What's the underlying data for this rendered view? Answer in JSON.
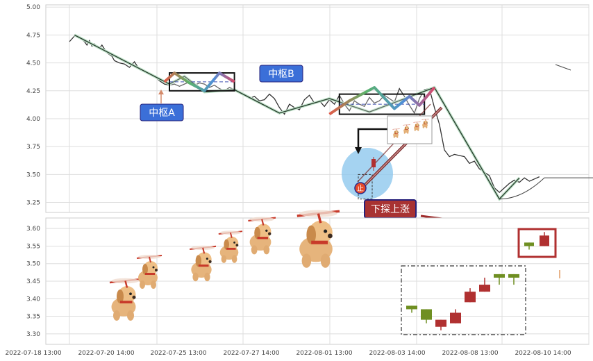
{
  "chart_data": [
    {
      "type": "line",
      "panel": "top",
      "y_ticks": [
        "5.00",
        "4.75",
        "4.50",
        "4.25",
        "4.00",
        "3.75",
        "3.50",
        "3.25"
      ],
      "ylim": [
        3.16,
        5.02
      ],
      "grid": true,
      "price_series": [
        [
          0,
          4.69
        ],
        [
          2,
          4.74
        ],
        [
          4,
          4.73
        ],
        [
          6,
          4.69
        ],
        [
          7,
          4.66
        ],
        [
          8,
          4.7
        ],
        [
          9,
          4.65
        ],
        [
          10,
          4.67
        ],
        [
          12,
          4.63
        ],
        [
          13,
          4.66
        ],
        [
          15,
          4.59
        ],
        [
          17,
          4.56
        ],
        [
          18,
          4.52
        ],
        [
          20,
          4.5
        ],
        [
          22,
          4.49
        ],
        [
          24,
          4.46
        ],
        [
          26,
          4.51
        ],
        [
          28,
          4.44
        ],
        [
          30,
          4.42
        ],
        [
          32,
          4.4
        ],
        [
          34,
          4.38
        ],
        [
          36,
          4.34
        ],
        [
          38,
          4.31
        ],
        [
          40,
          4.3
        ],
        [
          42,
          4.31
        ],
        [
          44,
          4.29
        ],
        [
          46,
          4.31
        ],
        [
          48,
          4.33
        ],
        [
          50,
          4.3
        ],
        [
          52,
          4.32
        ],
        [
          54,
          4.31
        ],
        [
          56,
          4.28
        ],
        [
          58,
          4.3
        ],
        [
          60,
          4.27
        ],
        [
          62,
          4.25
        ],
        [
          64,
          4.28
        ],
        [
          66,
          4.26
        ],
        [
          68,
          4.24
        ],
        [
          70,
          4.21
        ],
        [
          72,
          4.18
        ],
        [
          74,
          4.2
        ],
        [
          76,
          4.16
        ],
        [
          78,
          4.17
        ],
        [
          80,
          4.22
        ],
        [
          82,
          4.18
        ],
        [
          84,
          4.1
        ],
        [
          86,
          4.04
        ],
        [
          88,
          4.13
        ],
        [
          90,
          4.1
        ],
        [
          92,
          4.08
        ],
        [
          94,
          4.17
        ],
        [
          96,
          4.21
        ],
        [
          98,
          4.14
        ],
        [
          100,
          4.16
        ],
        [
          102,
          4.11
        ],
        [
          104,
          4.17
        ],
        [
          106,
          4.13
        ],
        [
          108,
          4.21
        ],
        [
          110,
          4.13
        ],
        [
          112,
          4.07
        ],
        [
          114,
          4.16
        ],
        [
          116,
          4.13
        ],
        [
          118,
          4.11
        ],
        [
          120,
          4.19
        ],
        [
          122,
          4.14
        ],
        [
          124,
          4.16
        ],
        [
          126,
          4.21
        ],
        [
          128,
          4.18
        ],
        [
          130,
          4.15
        ],
        [
          132,
          4.27
        ],
        [
          134,
          4.2
        ],
        [
          136,
          4.12
        ],
        [
          138,
          4.05
        ],
        [
          140,
          4.18
        ],
        [
          142,
          4.26
        ],
        [
          144,
          4.27
        ],
        [
          146,
          4.1
        ],
        [
          148,
          3.95
        ],
        [
          150,
          3.72
        ],
        [
          152,
          3.66
        ],
        [
          154,
          3.68
        ],
        [
          156,
          3.67
        ],
        [
          158,
          3.66
        ],
        [
          160,
          3.6
        ],
        [
          162,
          3.62
        ],
        [
          164,
          3.55
        ],
        [
          166,
          3.52
        ],
        [
          168,
          3.49
        ],
        [
          170,
          3.38
        ],
        [
          172,
          3.34
        ],
        [
          174,
          3.38
        ],
        [
          176,
          3.42
        ],
        [
          178,
          3.45
        ],
        [
          180,
          3.43
        ],
        [
          182,
          3.47
        ],
        [
          184,
          3.44
        ],
        [
          186,
          3.46
        ],
        [
          188,
          3.48
        ]
      ],
      "stroke_path": [
        [
          2,
          4.75
        ],
        [
          40,
          4.31
        ],
        [
          46,
          4.38
        ],
        [
          54,
          4.24
        ],
        [
          66,
          4.26
        ],
        [
          84,
          4.05
        ],
        [
          104,
          4.18
        ],
        [
          120,
          4.06
        ],
        [
          146,
          4.28
        ],
        [
          172,
          3.28
        ],
        [
          180,
          3.47
        ]
      ],
      "zhongshu": [
        {
          "label": "中枢A",
          "y_top": 4.41,
          "y_bottom": 4.25,
          "y_mid": 4.33,
          "x_start": 40,
          "x_end": 66,
          "zigzag": [
            [
              38,
              4.33
            ],
            [
              42,
              4.41
            ],
            [
              48,
              4.32
            ],
            [
              54,
              4.25
            ],
            [
              60,
              4.41
            ],
            [
              66,
              4.33
            ]
          ]
        },
        {
          "label": "中枢B",
          "y_top": 4.22,
          "y_bottom": 4.04,
          "y_mid": 4.13,
          "x_start": 108,
          "x_end": 142,
          "zigzag": [
            [
              104,
              4.04
            ],
            [
              112,
              4.16
            ],
            [
              122,
              4.28
            ],
            [
              130,
              4.09
            ],
            [
              136,
              4.2
            ],
            [
              140,
              4.12
            ],
            [
              146,
              4.28
            ]
          ]
        }
      ],
      "projection_curve": [
        [
          172,
          3.28
        ],
        [
          190,
          3.47
        ],
        [
          220,
          3.47
        ],
        [
          250,
          3.55
        ],
        [
          275,
          3.8
        ],
        [
          300,
          4.16
        ],
        [
          320,
          4.48
        ]
      ],
      "target_marker_label": "止",
      "annotation_text": "下探上涨",
      "small_box_levels": [
        3.5,
        3.28
      ]
    },
    {
      "type": "candlestick",
      "panel": "bottom",
      "y_ticks": [
        "3.60",
        "3.55",
        "3.50",
        "3.45",
        "3.40",
        "3.35",
        "3.30"
      ],
      "ylim": [
        3.27,
        3.63
      ],
      "grid": true,
      "candles": [
        {
          "open": 3.38,
          "close": 3.37,
          "high": 3.38,
          "low": 3.36
        },
        {
          "open": 3.37,
          "close": 3.34,
          "high": 3.37,
          "low": 3.33
        },
        {
          "open": 3.32,
          "close": 3.34,
          "high": 3.34,
          "low": 3.31
        },
        {
          "open": 3.33,
          "close": 3.36,
          "high": 3.37,
          "low": 3.33
        },
        {
          "open": 3.39,
          "close": 3.42,
          "high": 3.43,
          "low": 3.39
        },
        {
          "open": 3.42,
          "close": 3.44,
          "high": 3.46,
          "low": 3.42
        },
        {
          "open": 3.47,
          "close": 3.46,
          "high": 3.47,
          "low": 3.44
        },
        {
          "open": 3.47,
          "close": 3.46,
          "high": 3.47,
          "low": 3.44
        }
      ],
      "legend_candles": [
        {
          "open": 3.56,
          "close": 3.55,
          "high": 3.56,
          "low": 3.54
        },
        {
          "open": 3.55,
          "close": 3.58,
          "high": 3.59,
          "low": 3.55
        }
      ]
    }
  ],
  "x_ticks": [
    "2022-07-18 13:00",
    "2022-07-20 14:00",
    "2022-07-25 13:00",
    "2022-07-27 14:00",
    "2022-08-01 13:00",
    "2022-08-03 14:00",
    "2022-08-08 13:00",
    "2022-08-10 14:00"
  ],
  "colors": {
    "price_line": "#333333",
    "stroke_line": "#2a3d2f",
    "zhongshu_fill": "#3b6fd8",
    "box_border": "#111111",
    "annotation_fill": "#a83232",
    "annotation_border": "#27217a",
    "bull_candle": "#b03030",
    "bear_candle": "#6f8f22",
    "grid": "#dddddd",
    "circle_fill": "#87c4ec",
    "arrow": "#9e2a2a"
  },
  "icons": [
    "dog-helicopter-icon"
  ]
}
